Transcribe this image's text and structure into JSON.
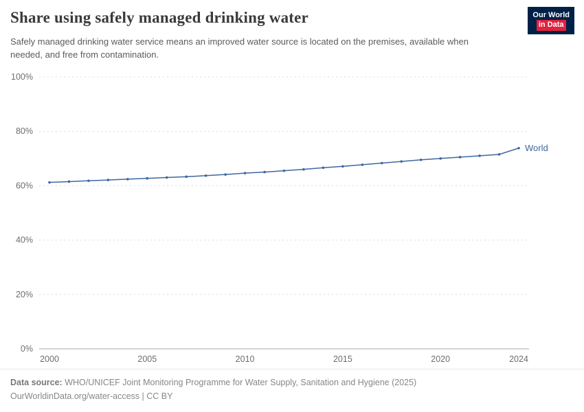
{
  "header": {
    "title": "Share using safely managed drinking water",
    "subtitle": "Safely managed drinking water service means an improved water source is located on the premises, available when needed, and free from contamination.",
    "logo": {
      "line1": "Our World",
      "line2": "in Data",
      "bg_color": "#002147",
      "accent_color": "#e2223e"
    }
  },
  "chart_data": {
    "type": "line",
    "title": "Share using safely managed drinking water",
    "xlabel": "",
    "ylabel": "",
    "x": [
      2000,
      2001,
      2002,
      2003,
      2004,
      2005,
      2006,
      2007,
      2008,
      2009,
      2010,
      2011,
      2012,
      2013,
      2014,
      2015,
      2016,
      2017,
      2018,
      2019,
      2020,
      2021,
      2022,
      2023,
      2024
    ],
    "series": [
      {
        "name": "World",
        "color": "#3e66a0",
        "values": [
          61.2,
          61.5,
          61.8,
          62.1,
          62.4,
          62.7,
          63.0,
          63.3,
          63.7,
          64.1,
          64.6,
          65.0,
          65.5,
          66.0,
          66.6,
          67.1,
          67.7,
          68.3,
          68.9,
          69.5,
          70.0,
          70.5,
          71.0,
          71.5,
          73.8
        ]
      }
    ],
    "xlim": [
      2000,
      2024
    ],
    "ylim": [
      0,
      100
    ],
    "yticks": [
      0,
      20,
      40,
      60,
      80,
      100
    ],
    "ytick_suffix": "%",
    "xticks": [
      2000,
      2005,
      2010,
      2015,
      2020,
      2024
    ],
    "grid": "horizontal-dashed",
    "legend_position": "end-of-line-label",
    "end_label": "World",
    "grid_color": "#dcdcdc",
    "axis_color": "#a8a8a8",
    "tick_label_color": "#6d6d6d"
  },
  "footer": {
    "source_label": "Data source:",
    "source_text": " WHO/UNICEF Joint Monitoring Programme for Water Supply, Sanitation and Hygiene (2025)",
    "license_text": "OurWorldinData.org/water-access | CC BY"
  }
}
